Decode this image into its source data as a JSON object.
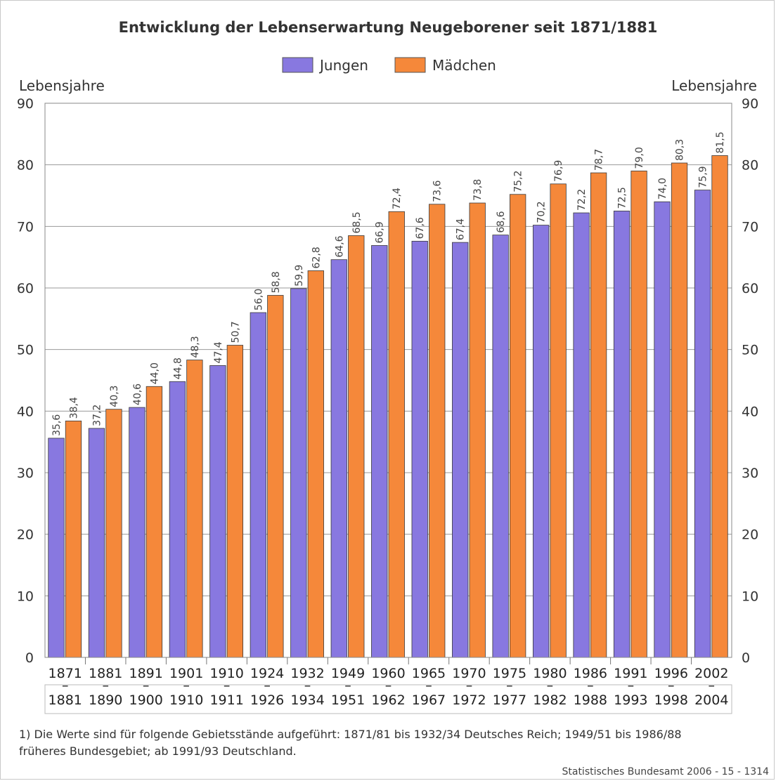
{
  "chart_data": {
    "type": "bar",
    "title": "Entwicklung der Lebenserwartung Neugeborener seit 1871/1881",
    "ylabel": "Lebensjahre",
    "ylabel_right": "Lebensjahre",
    "ylim": [
      0,
      90
    ],
    "yticks": [
      0,
      10,
      20,
      30,
      40,
      50,
      60,
      70,
      80,
      90
    ],
    "grid": true,
    "legend_position": "top-center",
    "categories": [
      {
        "start": "1871",
        "end": "1881"
      },
      {
        "start": "1881",
        "end": "1890"
      },
      {
        "start": "1891",
        "end": "1900"
      },
      {
        "start": "1901",
        "end": "1910"
      },
      {
        "start": "1910",
        "end": "1911"
      },
      {
        "start": "1924",
        "end": "1926"
      },
      {
        "start": "1932",
        "end": "1934"
      },
      {
        "start": "1949",
        "end": "1951"
      },
      {
        "start": "1960",
        "end": "1962"
      },
      {
        "start": "1965",
        "end": "1967"
      },
      {
        "start": "1970",
        "end": "1972"
      },
      {
        "start": "1975",
        "end": "1977"
      },
      {
        "start": "1980",
        "end": "1982"
      },
      {
        "start": "1986",
        "end": "1988"
      },
      {
        "start": "1991",
        "end": "1993"
      },
      {
        "start": "1996",
        "end": "1998"
      },
      {
        "start": "2002",
        "end": "2004"
      }
    ],
    "separator": "–",
    "series": [
      {
        "name": "Jungen",
        "color": "#8878e0",
        "values": [
          35.6,
          37.2,
          40.6,
          44.8,
          47.4,
          56.0,
          59.9,
          64.6,
          66.9,
          67.6,
          67.4,
          68.6,
          70.2,
          72.2,
          72.5,
          74.0,
          75.9
        ],
        "labels": [
          "35,6",
          "37,2",
          "40,6",
          "44,8",
          "47,4",
          "56,0",
          "59,9",
          "64,6",
          "66,9",
          "67,6",
          "67,4",
          "68,6",
          "70,2",
          "72,2",
          "72,5",
          "74,0",
          "75,9"
        ]
      },
      {
        "name": "Mädchen",
        "color": "#f5883a",
        "values": [
          38.4,
          40.3,
          44.0,
          48.3,
          50.7,
          58.8,
          62.8,
          68.5,
          72.4,
          73.6,
          73.8,
          75.2,
          76.9,
          78.7,
          79.0,
          80.3,
          81.5
        ],
        "labels": [
          "38,4",
          "40,3",
          "44,0",
          "48,3",
          "50,7",
          "58,8",
          "62,8",
          "68,5",
          "72,4",
          "73,6",
          "73,8",
          "75,2",
          "76,9",
          "78,7",
          "79,0",
          "80,3",
          "81,5"
        ]
      }
    ],
    "footnote_line1": "1) Die Werte sind für folgende Gebietsstände aufgeführt: 1871/81 bis 1932/34 Deutsches Reich; 1949/51 bis 1986/88",
    "footnote_line2": "früheres Bundesgebiet; ab 1991/93 Deutschland.",
    "source": "Statistisches Bundesamt 2006 - 15 - 1314"
  }
}
